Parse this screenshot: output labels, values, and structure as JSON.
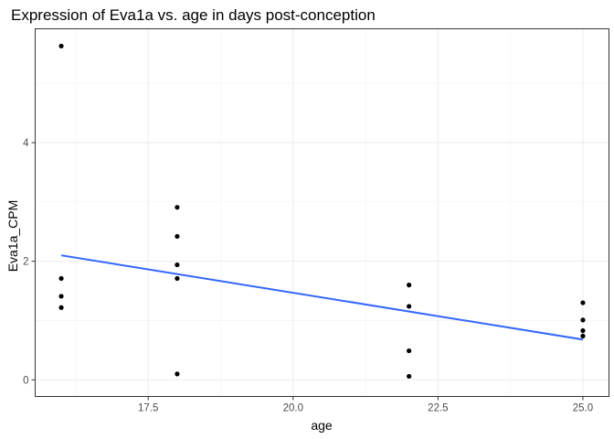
{
  "chart_data": {
    "type": "scatter",
    "title": "Expression of Eva1a vs. age in days post-conception",
    "xlabel": "age",
    "ylabel": "Eva1a_CPM",
    "xlim": [
      15.55,
      25.45
    ],
    "ylim": [
      -0.28,
      5.92
    ],
    "x_ticks": [
      17.5,
      20.0,
      22.5,
      25.0
    ],
    "x_tick_labels": [
      "17.5",
      "20.0",
      "22.5",
      "25.0"
    ],
    "y_ticks": [
      0,
      2,
      4
    ],
    "y_tick_labels": [
      "0",
      "2",
      "4"
    ],
    "grid": true,
    "legend": "none",
    "points": [
      {
        "x": 16,
        "y": 5.63
      },
      {
        "x": 16,
        "y": 1.71
      },
      {
        "x": 16,
        "y": 1.41
      },
      {
        "x": 16,
        "y": 1.22
      },
      {
        "x": 18,
        "y": 2.91
      },
      {
        "x": 18,
        "y": 2.42
      },
      {
        "x": 18,
        "y": 1.94
      },
      {
        "x": 18,
        "y": 1.71
      },
      {
        "x": 18,
        "y": 0.1
      },
      {
        "x": 22,
        "y": 1.6
      },
      {
        "x": 22,
        "y": 1.24
      },
      {
        "x": 22,
        "y": 0.49
      },
      {
        "x": 22,
        "y": 0.06
      },
      {
        "x": 25,
        "y": 1.3
      },
      {
        "x": 25,
        "y": 1.01
      },
      {
        "x": 25,
        "y": 0.83
      },
      {
        "x": 25,
        "y": 0.74
      }
    ],
    "trend_line": {
      "x": [
        16,
        25
      ],
      "y": [
        2.1,
        0.68
      ]
    },
    "colors": {
      "points": "#000000",
      "trend_line": "#3366ff",
      "grid_major": "#ebebeb",
      "grid_minor": "#f5f5f5",
      "panel_border": "#333333"
    }
  }
}
